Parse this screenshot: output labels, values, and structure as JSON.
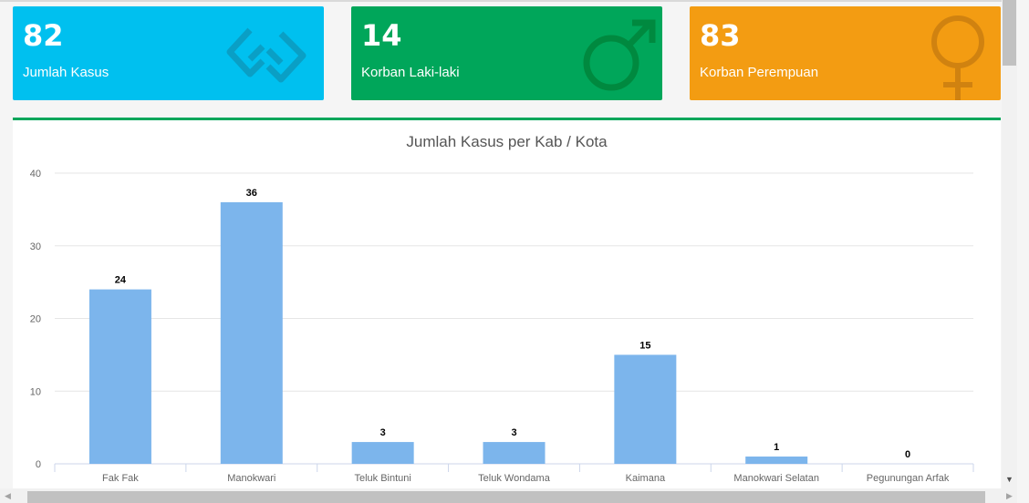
{
  "info_boxes": {
    "kasus": {
      "number": "82",
      "label": "Jumlah Kasus",
      "icon": "handshake-icon"
    },
    "laki": {
      "number": "14",
      "label": "Korban Laki-laki",
      "icon": "male-icon"
    },
    "perempuan": {
      "number": "83",
      "label": "Korban Perempuan",
      "icon": "female-icon"
    }
  },
  "colors": {
    "aqua": "#00c0ef",
    "green": "#00a65a",
    "orange": "#f39c12",
    "bar": "#7cb5ec"
  },
  "chart_data": {
    "type": "bar",
    "title": "Jumlah Kasus per Kab / Kota",
    "categories": [
      "Fak Fak",
      "Manokwari",
      "Teluk Bintuni",
      "Teluk Wondama",
      "Kaimana",
      "Manokwari Selatan",
      "Pegunungan Arfak"
    ],
    "values": [
      24,
      36,
      3,
      3,
      15,
      1,
      0
    ],
    "ylim": [
      0,
      40
    ],
    "yticks": [
      0,
      10,
      20,
      30,
      40
    ],
    "grid": true,
    "legend": "none"
  }
}
